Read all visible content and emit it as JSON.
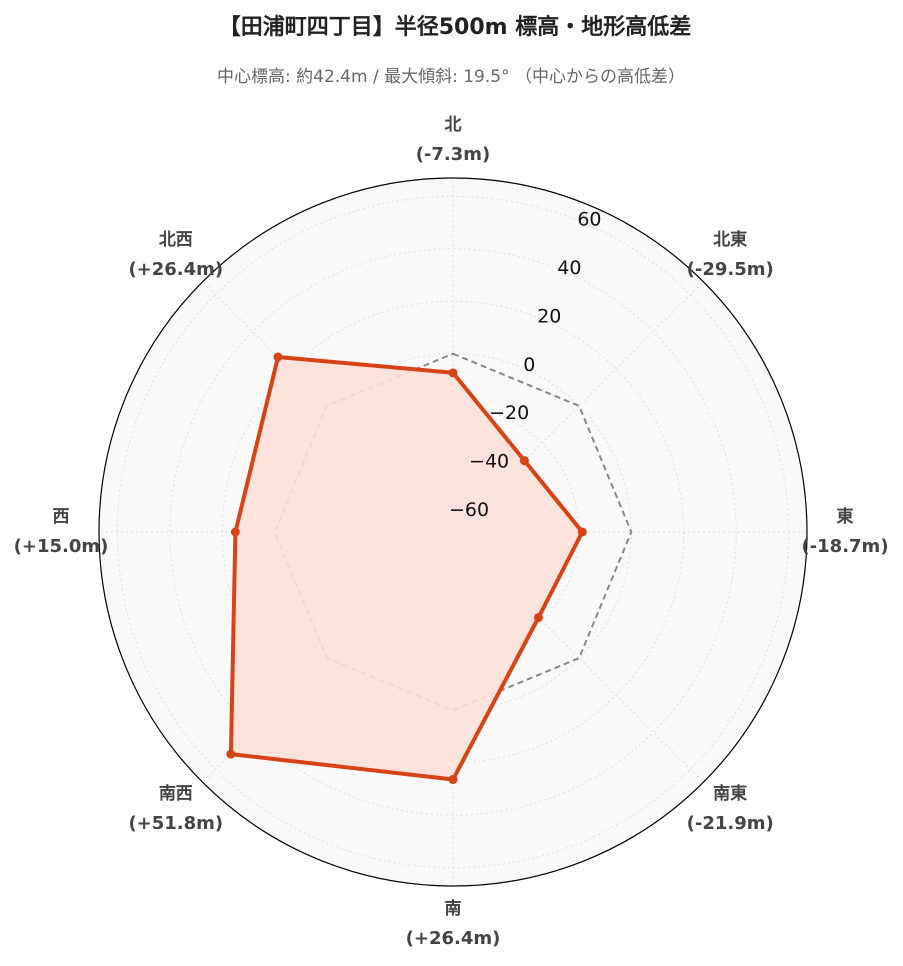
{
  "chart_data": {
    "type": "radar",
    "title": "【田浦町四丁目】半径500m 標高・地形高低差",
    "subtitle": "中心標高: 約42.4m / 最大傾斜: 19.5° （中心からの高低差）",
    "categories": [
      "北",
      "北東",
      "東",
      "南東",
      "南",
      "南西",
      "西",
      "北西"
    ],
    "series": [
      {
        "color": "#d84315",
        "fill": "#fde0d8",
        "values": [
          -7.3,
          -29.5,
          -18.7,
          -21.9,
          26.4,
          51.8,
          15.0,
          26.4
        ],
        "value_labels": [
          "(-7.3m)",
          "(-29.5m)",
          "(-18.7m)",
          "(-21.9m)",
          "(+26.4m)",
          "(+51.8m)",
          "(+15.0m)",
          "(+26.4m)"
        ]
      }
    ],
    "reference": {
      "value": 0,
      "color": "#888888"
    },
    "ylim": [
      -68,
      67
    ],
    "yticks": [
      {
        "value": -60,
        "label": "−60"
      },
      {
        "value": -40,
        "label": "−40"
      },
      {
        "value": -20,
        "label": "−20"
      },
      0,
      20,
      40,
      60
    ],
    "grid": true
  }
}
